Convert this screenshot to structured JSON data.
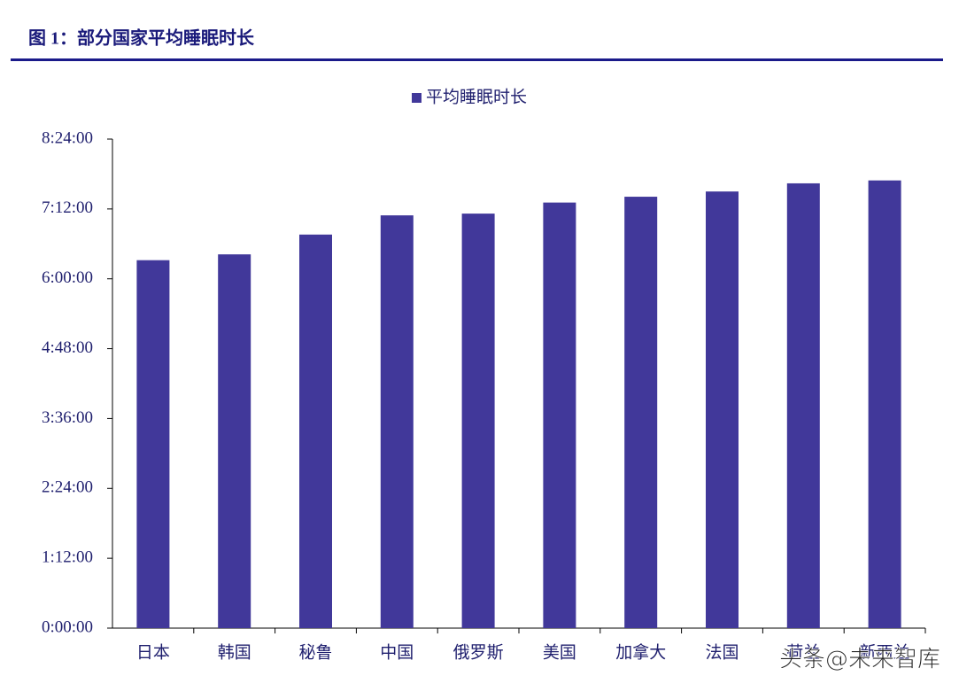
{
  "header": {
    "title": "图 1：部分国家平均睡眠时长"
  },
  "watermark": "头条@未来智库",
  "chart_data": {
    "type": "bar",
    "categories": [
      "日本",
      "韩国",
      "秘鲁",
      "中国",
      "俄罗斯",
      "美国",
      "加拿大",
      "法国",
      "荷兰",
      "新西兰"
    ],
    "series": [
      {
        "name": "平均睡眠时长",
        "color": "#41389a",
        "values": [
          6.32,
          6.42,
          6.76,
          7.09,
          7.12,
          7.31,
          7.41,
          7.5,
          7.64,
          7.69
        ]
      }
    ],
    "ylim": [
      0,
      8.4
    ],
    "yticks": [
      {
        "value": 0,
        "label": "0:00:00"
      },
      {
        "value": 1.2,
        "label": "1:12:00"
      },
      {
        "value": 2.4,
        "label": "2:24:00"
      },
      {
        "value": 3.6,
        "label": "3:36:00"
      },
      {
        "value": 4.8,
        "label": "4:48:00"
      },
      {
        "value": 6,
        "label": "6:00:00"
      },
      {
        "value": 7.2,
        "label": "7:12:00"
      },
      {
        "value": 8.4,
        "label": "8:24:00"
      }
    ],
    "legend": "top"
  }
}
